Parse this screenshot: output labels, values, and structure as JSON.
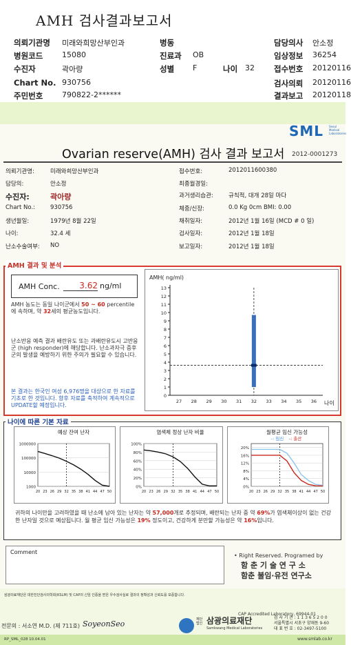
{
  "doc_title": "AMH 검사결과보고서",
  "header": {
    "rows": [
      [
        {
          "label": "의뢰기관명",
          "value": "미래와희망산부인과"
        },
        {
          "label": "병동",
          "value": ""
        },
        {
          "label": "담당의사",
          "value": "안소정"
        }
      ],
      [
        {
          "label": "병원코드",
          "value": "15080"
        },
        {
          "label": "진료과",
          "value": "OB"
        },
        {
          "label": "임상정보",
          "value": "36254"
        }
      ],
      [
        {
          "label": "수진자",
          "value": "곽아량"
        },
        {
          "label": "성별",
          "value": "F"
        },
        {
          "label": "접수번호",
          "value": "20120116"
        }
      ],
      [
        {
          "label": "Chart No.",
          "value": "930756"
        },
        {
          "label": "",
          "value": ""
        },
        {
          "label": "검사의뢰",
          "value": "20120116"
        }
      ],
      [
        {
          "label": "주민번호",
          "value": "790822-2******"
        },
        {
          "label": "",
          "value": ""
        },
        {
          "label": "결과보고",
          "value": "20120118"
        }
      ]
    ],
    "age_label": "나이",
    "age_value": "32"
  },
  "report": {
    "logo": "SML",
    "logo_sub": "Seoul Medical Laboratories",
    "title": "Ovarian reserve(AMH) 검사 결과 보고서",
    "report_no": "2012-0001273",
    "info_left": [
      {
        "label": "의뢰기관명:",
        "value": "미래와희망산부인과"
      },
      {
        "label": "담당의:",
        "value": "안소정"
      },
      {
        "label": "수진자:",
        "value": "곽아량"
      },
      {
        "label": "Chart No.:",
        "value": "930756"
      },
      {
        "label": "생년월일:",
        "value": "1979년 8월 22일"
      },
      {
        "label": "나이:",
        "value": "32.4 세"
      },
      {
        "label": "난소수술여부:",
        "value": "NO"
      }
    ],
    "info_right": [
      {
        "label": "접수번호:",
        "value": "2012011600380"
      },
      {
        "label": "최종월경일:",
        "value": ""
      },
      {
        "label": "과거생리습관:",
        "value": "규칙적, 대개 28일 마다"
      },
      {
        "label": "체중/신장:",
        "value": "0.0 Kg      0cm    BMI:  0.00"
      },
      {
        "label": "채취일자:",
        "value": "2012년 1월 16일  (MCD # 0 일)"
      },
      {
        "label": "검사일자:",
        "value": "2012년 1월 18일"
      },
      {
        "label": "보고일자:",
        "value": "2012년 1월 18일"
      }
    ],
    "amh_section_title": "AMH 결과 및 분석",
    "amh_conc_label": "AMH Conc.",
    "amh_conc_value": "3.62",
    "amh_conc_unit": "ng/ml",
    "para1_a": "AMH 농도는 동일 나이군에서",
    "para1_range": "50 ~ 60",
    "para1_b": "percentile에 속하며, 약",
    "para1_age": "32",
    "para1_c": "세의 평균농도입니다.",
    "para2": "난소반응 예측 결과 배란유도 또는 과배란유도시 고반응군 (high responder)에 해당합니다. 난소과자극 증후군의 발생을 예방하기 위한 주의가 필요할 수 있습니다.",
    "para3": "본 결과는 한국인 여성 6,976명을 대상으로 한 자료를 기초로 한 것입니다. 향후 자료를 축적하여 계속적으로 UPDATE할 예정입니다.",
    "age_section_title": "나이에 따른 기본 자료",
    "summary_a": "귀하의 나이만을 고려하였을 때 난소에 남아 있는 난자는 약",
    "summary_eggs": "57,000",
    "summary_b": "개로 추정되며, 배란되는 난자 중 약",
    "summary_pct": "69%",
    "summary_c": "가 염색체이상이 없는 건강한 난자일 것으로 예상됩니다. 월 평균 임신 가능성은",
    "summary_preg": "19%",
    "summary_d": "정도이고, 건강하게 분만할 가능성은 약",
    "summary_birth": "16%",
    "summary_e": "입니다.",
    "comment_label": "Comment",
    "rights": "• Right Reserved. Programed by",
    "institute1": "함 춘  기 술  연 구 소",
    "institute2": "함춘 불임·유전 연구소",
    "footer_note": "삼광의료재단은 대한진단검사의학회(KSLM) 및 CAP의 신임 인증을 받은 우수검사실로 결과의 정확성과 신뢰도를 보증합니다.",
    "cap_text": "CAP  Accredited  Laboratory,  69944-01",
    "doctor": "전문의 : 서소연 M.D. (제 711호)",
    "signature": "SoyeonSeo",
    "foundation_small": "재단법인",
    "foundation": "삼광의료재단",
    "foundation_en": "Samkwang Medical Laboratories",
    "contact1": "검 사 기 관 : 1 1 3 6 5 2 0 0",
    "contact2": "서울특별시 서초구 양재동 9-60",
    "contact3": "대 표 번 호 : 02-3497-5100",
    "form_code": "RP_SML_028  10.04.01",
    "website": "www.smlab.co.kr"
  },
  "chart_data": [
    {
      "type": "scatter",
      "title": "AMH( ng/ml)",
      "xlabel": "나이",
      "x_ticks": [
        27,
        28,
        29,
        30,
        31,
        32,
        33,
        34,
        35,
        36
      ],
      "y_ticks": [
        0,
        1,
        2,
        3,
        4,
        5,
        6,
        7,
        8,
        9,
        10,
        11,
        12,
        13
      ],
      "xlim": [
        26.4,
        36.6
      ],
      "ylim": [
        0,
        13
      ],
      "point": {
        "x": 32,
        "y": 3.62
      },
      "range_bar": {
        "x": 32,
        "y_low": 1.0,
        "y_high": 9.7
      },
      "grid": false
    },
    {
      "type": "line",
      "title": "예상 잔여 난자",
      "x": [
        20,
        23,
        26,
        29,
        32,
        35,
        38,
        41,
        44,
        47,
        50
      ],
      "x_ticks": [
        "20",
        "23",
        "26",
        "29",
        "32",
        "35",
        "38",
        "41",
        "44",
        "47",
        "50"
      ],
      "y_ticks": [
        "1000",
        "10000",
        "100000",
        "1000000"
      ],
      "ylog": true,
      "values": [
        280000,
        200000,
        140000,
        95000,
        57000,
        32000,
        16000,
        7000,
        2600,
        1200,
        1000
      ],
      "marker_x": 32
    },
    {
      "type": "line",
      "title": "염색체 정상 난자 비율",
      "x": [
        20,
        23,
        26,
        29,
        32,
        35,
        38,
        41,
        44,
        47,
        50
      ],
      "x_ticks": [
        "20",
        "23",
        "26",
        "29",
        "32",
        "35",
        "38",
        "41",
        "44",
        "47",
        "50"
      ],
      "y_ticks": [
        "0%",
        "20%",
        "40%",
        "60%",
        "80%",
        "100%"
      ],
      "ylim": [
        0,
        100
      ],
      "values": [
        85,
        83,
        80,
        76,
        69,
        58,
        42,
        22,
        5,
        1,
        1
      ],
      "marker_x": 32
    },
    {
      "type": "line",
      "title": "월평균 임신 가능성",
      "legend": [
        "임신",
        "출산"
      ],
      "x": [
        20,
        23,
        26,
        29,
        32,
        35,
        38,
        41,
        44,
        47,
        50
      ],
      "x_ticks": [
        "20",
        "23",
        "26",
        "29",
        "32",
        "35",
        "38",
        "41",
        "44",
        "47",
        "50"
      ],
      "y_ticks": [
        "0%",
        "4%",
        "8%",
        "12%",
        "16%",
        "20%"
      ],
      "ylim": [
        0,
        22
      ],
      "series": [
        {
          "name": "임신",
          "values": [
            19,
            19,
            19,
            19,
            19,
            17,
            12,
            6,
            3,
            1,
            0.5
          ]
        },
        {
          "name": "출산",
          "values": [
            16,
            16,
            16,
            16,
            16,
            13,
            7,
            3,
            1,
            0.3,
            0.2
          ]
        }
      ],
      "marker_x": 32
    }
  ]
}
